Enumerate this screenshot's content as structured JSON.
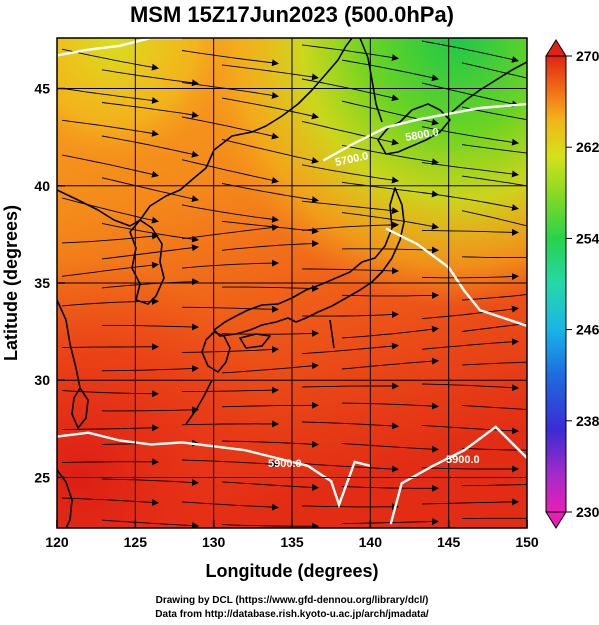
{
  "title": "MSM 15Z17Jun2023 (500.0hPa)",
  "xaxis": {
    "label": "Longitude (degrees)",
    "range": [
      120,
      150
    ],
    "ticks": [
      "120",
      "125",
      "130",
      "135",
      "140",
      "145",
      "150"
    ]
  },
  "yaxis": {
    "label": "Latitude  (degrees)",
    "range": [
      22.4,
      47.6
    ],
    "ticks": [
      "25",
      "30",
      "35",
      "40",
      "45"
    ]
  },
  "colorbar": {
    "range": [
      230,
      270
    ],
    "ticks": [
      "230",
      "238",
      "246",
      "254",
      "262",
      "270"
    ],
    "colors": [
      "#e81fb5",
      "#9c2ad0",
      "#3b2bd6",
      "#1d6be0",
      "#18b5e6",
      "#25d8a8",
      "#28d24a",
      "#6cdc22",
      "#c4e21b",
      "#f2c91a",
      "#f28a1a",
      "#ec4a18",
      "#e02412"
    ]
  },
  "contour_labels": [
    "5900.0",
    "5900.0",
    "5800.0",
    "5700.0"
  ],
  "credits": {
    "line1": "Drawing by DCL (https://www.gfd-dennou.org/library/dcl/)",
    "line2": "Data from http://database.rish.kyoto-u.ac.jp/arch/jmadata/"
  },
  "chart_data": {
    "type": "heatmap",
    "variable": "500 hPa temperature (K) with wind streamlines and geopotential height contours",
    "title": "MSM 15Z17Jun2023 (500.0hPa)",
    "xlabel": "Longitude (degrees)",
    "ylabel": "Latitude  (degrees)",
    "xlim": [
      120,
      150
    ],
    "ylim": [
      22.4,
      47.6
    ],
    "colorbar_range": [
      230,
      270
    ],
    "grid": true,
    "contours": [
      {
        "label": "5900.0",
        "lon": [
          120,
          122,
          124,
          126,
          128,
          130,
          132,
          134,
          136,
          137.5,
          138,
          139,
          140
        ],
        "lat": [
          27.1,
          27.3,
          26.9,
          26.7,
          26.8,
          26.6,
          26.4,
          26.0,
          25.6,
          24.8,
          23.6,
          25.8,
          25.6
        ]
      },
      {
        "label": "5900.0",
        "lon": [
          141.3,
          142,
          144,
          146,
          148,
          150
        ],
        "lat": [
          22.6,
          24.7,
          25.6,
          26.4,
          27.6,
          26.0
        ]
      },
      {
        "label": "5800.0",
        "lon": [
          141,
          143,
          145,
          146,
          147,
          148.5,
          150
        ],
        "lat": [
          37.8,
          37.0,
          35.8,
          34.6,
          33.6,
          33.2,
          32.8
        ]
      },
      {
        "label": "5700.0",
        "lon": [
          137,
          139,
          141,
          143,
          145,
          147,
          150
        ],
        "lat": [
          41.3,
          42.2,
          43.0,
          43.4,
          43.7,
          44.0,
          44.2
        ]
      },
      {
        "label": "",
        "lon": [
          120,
          122,
          124,
          126,
          128
        ],
        "lat": [
          46.7,
          47.0,
          47.2,
          47.6,
          47.6
        ]
      }
    ]
  }
}
